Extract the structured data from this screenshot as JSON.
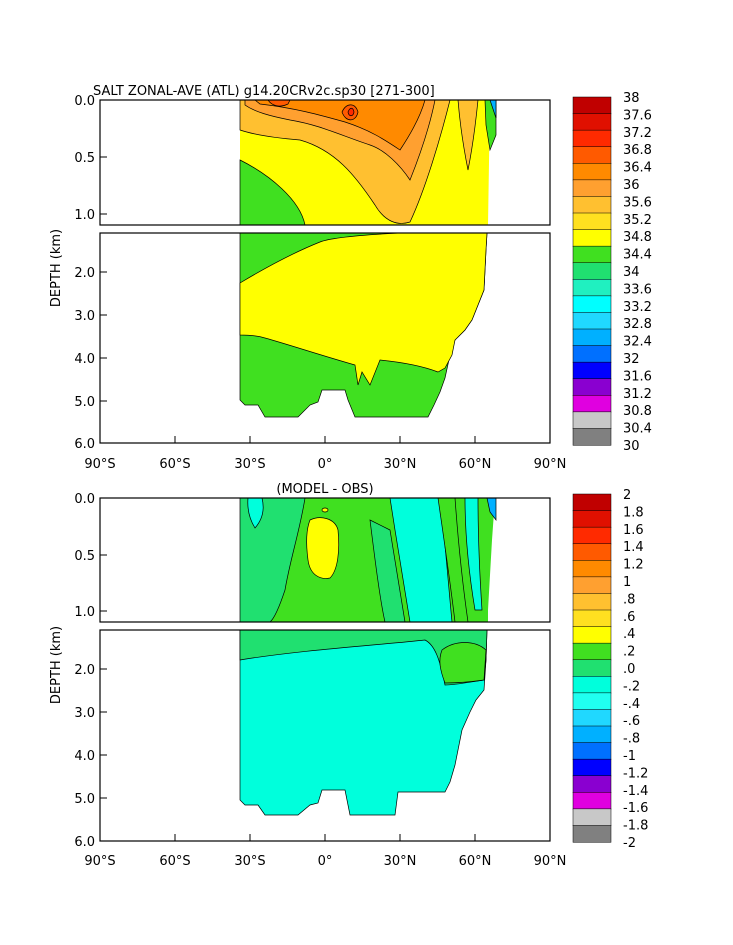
{
  "chart_data": [
    {
      "type": "heatmap",
      "title": "SALT ZONAL-AVE (ATL) g14.20CRv2c.sp30 [271-300]",
      "ylabel": "DEPTH (km)",
      "xlabel": "",
      "x_ticks": [
        "90°S",
        "60°S",
        "30°S",
        "0°",
        "30°N",
        "60°N",
        "90°N"
      ],
      "y_ticks_upper": [
        "0.0",
        "0.5",
        "1.0"
      ],
      "y_ticks_lower": [
        "2.0",
        "3.0",
        "4.0",
        "5.0",
        "6.0"
      ],
      "xlim": [
        -90,
        90
      ],
      "ylim": [
        6.0,
        0.0
      ],
      "y_break_km": 1.1,
      "colorbar": {
        "levels": [
          "38",
          "37.6",
          "37.2",
          "36.8",
          "36.4",
          "36",
          "35.6",
          "35.2",
          "34.8",
          "34.4",
          "34",
          "33.6",
          "33.2",
          "32.8",
          "32.4",
          "32",
          "31.6",
          "31.2",
          "30.8",
          "30.4",
          "30"
        ],
        "colors": [
          "#c00000",
          "#e01000",
          "#ff2a00",
          "#ff5a00",
          "#ff8a00",
          "#ffa030",
          "#ffc030",
          "#ffe020",
          "#ffff00",
          "#40e020",
          "#20e070",
          "#20f0c0",
          "#00ffff",
          "#20d8ff",
          "#00b0ff",
          "#0070ff",
          "#0000ff",
          "#8a00d0",
          "#e000e0",
          "#c8c8c8",
          "#808080"
        ]
      }
    },
    {
      "type": "heatmap",
      "title": "(MODEL - OBS)",
      "ylabel": "DEPTH (km)",
      "xlabel": "",
      "x_ticks": [
        "90°S",
        "60°S",
        "30°S",
        "0°",
        "30°N",
        "60°N",
        "90°N"
      ],
      "y_ticks_upper": [
        "0.0",
        "0.5",
        "1.0"
      ],
      "y_ticks_lower": [
        "2.0",
        "3.0",
        "4.0",
        "5.0",
        "6.0"
      ],
      "xlim": [
        -90,
        90
      ],
      "ylim": [
        6.0,
        0.0
      ],
      "y_break_km": 1.1,
      "colorbar": {
        "levels": [
          "2",
          "1.8",
          "1.6",
          "1.4",
          "1.2",
          "1",
          ".8",
          ".6",
          ".4",
          ".2",
          ".0",
          "-.2",
          "-.4",
          "-.6",
          "-.8",
          "-1",
          "-1.2",
          "-1.4",
          "-1.6",
          "-1.8",
          "-2"
        ],
        "colors": [
          "#c00000",
          "#e01000",
          "#ff2a00",
          "#ff5a00",
          "#ff8a00",
          "#ffa030",
          "#ffc030",
          "#ffe020",
          "#ffff00",
          "#40e020",
          "#20e070",
          "#00ffdc",
          "#20fff0",
          "#20d8ff",
          "#00b0ff",
          "#0070ff",
          "#0000ff",
          "#8a00d0",
          "#e000e0",
          "#c8c8c8",
          "#808080"
        ]
      }
    }
  ]
}
